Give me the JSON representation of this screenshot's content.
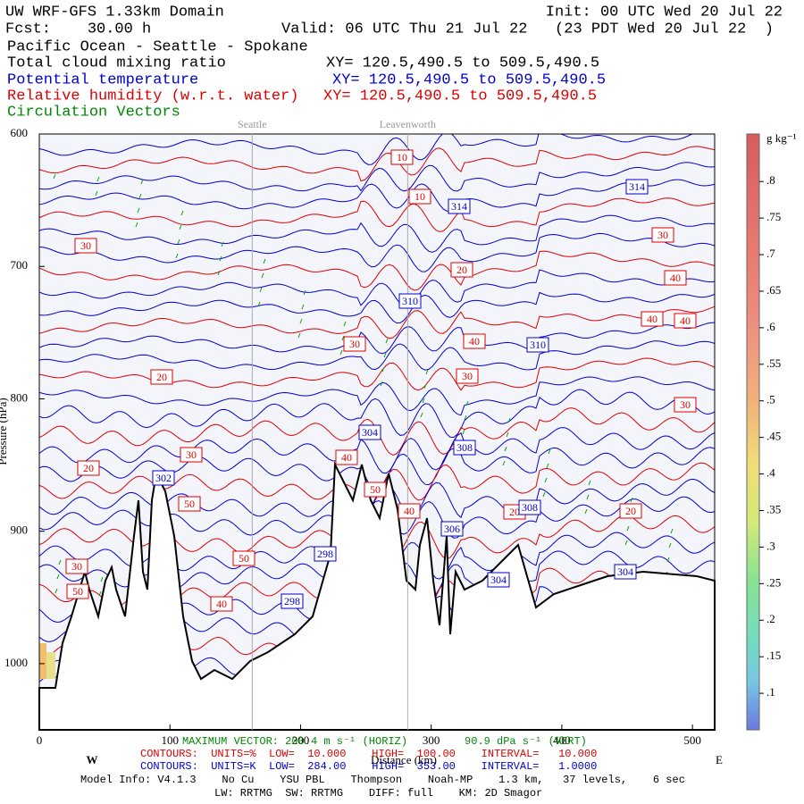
{
  "header": {
    "title": "UW WRF-GFS 1.33km Domain",
    "init": "Init: 00 UTC Wed 20 Jul 22",
    "fcst": "Fcst:    30.00 h",
    "valid": "Valid: 06 UTC Thu 21 Jul 22   (23 PDT Wed 20 Jul 22  )",
    "region": "Pacific Ocean - Seattle - Spokane",
    "fields": [
      {
        "name": "Total cloud mixing ratio",
        "xy": "XY= 120.5,490.5 to 509.5,490.5",
        "color": "#000000"
      },
      {
        "name": "Potential temperature",
        "xy": "XY= 120.5,490.5 to 509.5,490.5",
        "color": "#0000cc"
      },
      {
        "name": "Relative humidity (w.r.t. water)",
        "xy": "XY= 120.5,490.5 to 509.5,490.5",
        "color": "#dd0000"
      },
      {
        "name": "Circulation Vectors",
        "color": "#008800"
      }
    ]
  },
  "chart_data": {
    "type": "cross-section",
    "xlabel": "Distance (km)",
    "ylabel": "Pressure (hPa)",
    "west": "W",
    "east": "E",
    "xlim": [
      0,
      517
    ],
    "xticks": [
      0,
      100,
      200,
      300,
      400,
      500
    ],
    "ylim": [
      600,
      1050
    ],
    "yticks": [
      600,
      700,
      800,
      900,
      1000
    ],
    "y_reversed": true,
    "locations": [
      {
        "name": "Seattle",
        "x": 163
      },
      {
        "name": "Leavenworth",
        "x": 282
      }
    ],
    "rh_color": "#dd0000",
    "theta_color": "#0000cc",
    "rh_labels": [
      10,
      10,
      30,
      30,
      20,
      40,
      40,
      40,
      30,
      40,
      20,
      30,
      30,
      30,
      20,
      40,
      50,
      50,
      20,
      20,
      40,
      50,
      30,
      50,
      40
    ],
    "theta_labels": [
      314,
      314,
      310,
      310,
      304,
      308,
      302,
      308,
      306,
      298,
      304,
      304,
      298
    ],
    "colorbar": {
      "label": "g kg⁻¹",
      "lim": [
        0.05,
        0.865
      ],
      "ticks": [
        {
          "value": 0.1,
          "label": ".1"
        },
        {
          "value": 0.15,
          "label": ".15"
        },
        {
          "value": 0.2,
          "label": ".2"
        },
        {
          "value": 0.25,
          "label": ".25"
        },
        {
          "value": 0.3,
          "label": ".3"
        },
        {
          "value": 0.35,
          "label": ".35"
        },
        {
          "value": 0.4,
          "label": ".4"
        },
        {
          "value": 0.45,
          "label": ".45"
        },
        {
          "value": 0.5,
          "label": ".5"
        },
        {
          "value": 0.55,
          "label": ".55"
        },
        {
          "value": 0.6,
          "label": ".6"
        },
        {
          "value": 0.65,
          "label": ".65"
        },
        {
          "value": 0.7,
          "label": ".7"
        },
        {
          "value": 0.75,
          "label": ".75"
        },
        {
          "value": 0.8,
          "label": ".8"
        }
      ]
    },
    "footer": {
      "vector_h": "MAXIMUM VECTOR: 200.4 m s⁻¹ (HORIZ)",
      "vector_v": "90.9 dPa s⁻¹ (VERT)",
      "rh_contours": "CONTOURS:  UNITS=%  LOW=  10.000    HIGH=  100.00    INTERVAL=   10.000",
      "theta_contours": "CONTOURS:  UNITS=K  LOW=  284.00    HIGH=  353.00    INTERVAL=   1.0000",
      "model": "Model Info: V4.1.3    No Cu    YSU PBL    Thompson    Noah-MP    1.3 km,   37 levels,    6 sec",
      "physics": "LW: RRTMG  SW: RRTMG    DIFF: full    KM: 2D Smagor"
    }
  }
}
